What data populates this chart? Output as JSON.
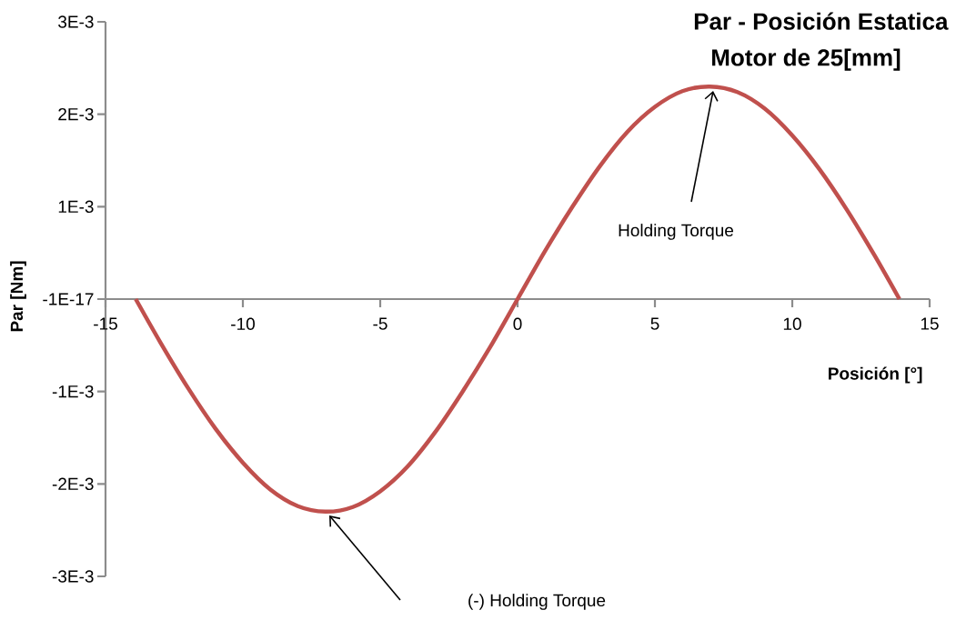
{
  "chart_data": {
    "type": "line",
    "title": "Par - Posición Estatica",
    "subtitle": "Motor de 25[mm]",
    "xlabel": "Posición [°]",
    "ylabel": "Par [Nm]",
    "x": [
      -13.9,
      -13,
      -12,
      -11,
      -10,
      -9,
      -8,
      -7,
      -6,
      -5,
      -4,
      -3,
      -2,
      -1,
      0,
      1,
      2,
      3,
      4,
      5,
      6,
      7,
      8,
      9,
      10,
      11,
      12,
      13,
      13.9
    ],
    "series": [
      {
        "color": "#c0504d",
        "values": [
          0,
          -0.00047,
          -0.00096,
          -0.0014,
          -0.00177,
          -0.00206,
          -0.00224,
          -0.0023,
          -0.00225,
          -0.00208,
          -0.00181,
          -0.00144,
          -0.001,
          -0.00052,
          0,
          0.00052,
          0.001,
          0.00144,
          0.00181,
          0.00208,
          0.00225,
          0.0023,
          0.00224,
          0.00206,
          0.00177,
          0.0014,
          0.00096,
          0.00047,
          0
        ]
      }
    ],
    "xlim": [
      -15,
      15
    ],
    "xticks": [
      -15,
      -10,
      -5,
      0,
      5,
      10,
      15
    ],
    "ylim": [
      -0.003,
      0.003
    ],
    "yticks": [
      {
        "value": -0.003,
        "label": "-3E-3"
      },
      {
        "value": -0.002,
        "label": "-2E-3"
      },
      {
        "value": -0.001,
        "label": "-1E-3"
      },
      {
        "value": 0,
        "label": "-1E-17"
      },
      {
        "value": 0.001,
        "label": "1E-3"
      },
      {
        "value": 0.002,
        "label": "2E-3"
      },
      {
        "value": 0.003,
        "label": "3E-3"
      }
    ],
    "annotations": [
      "Holding Torque",
      "(-) Holding Torque"
    ],
    "grid": false,
    "legend": false,
    "marker": "none",
    "line_style": "solid"
  }
}
